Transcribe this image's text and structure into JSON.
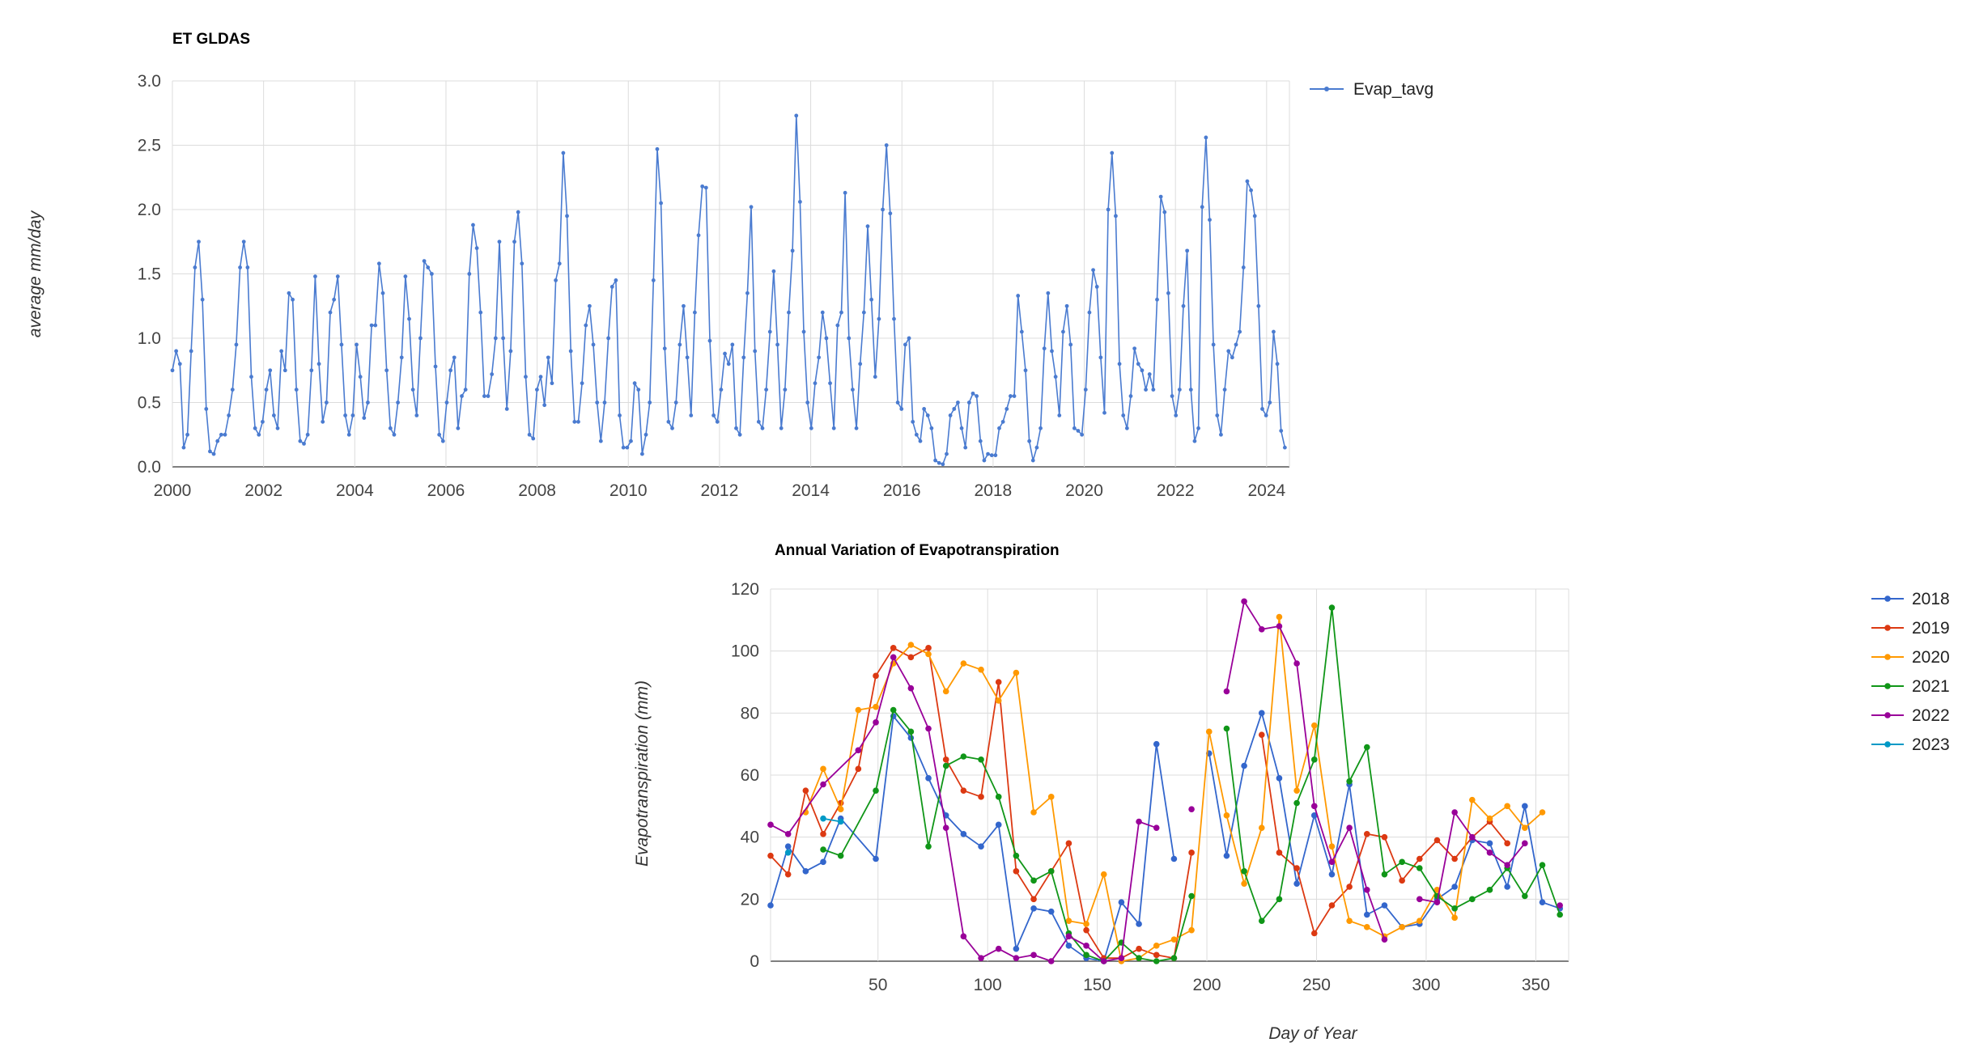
{
  "chart_data": [
    {
      "type": "line",
      "title": "ET GLDAS",
      "xlabel": "",
      "ylabel": "average mm/day",
      "xlim": [
        2000,
        2025
      ],
      "ylim": [
        0,
        3.0
      ],
      "x_ticks": [
        "2000",
        "2002",
        "2004",
        "2006",
        "2008",
        "2010",
        "2012",
        "2014",
        "2016",
        "2018",
        "2020",
        "2022",
        "2024"
      ],
      "y_ticks": [
        "0.0",
        "0.5",
        "1.0",
        "1.5",
        "2.0",
        "2.5",
        "3.0"
      ],
      "legend_position": "top-right",
      "grid": true,
      "series": [
        {
          "name": "Evap_tavg",
          "color": "#4a7bd0",
          "values": [
            0.75,
            0.9,
            0.8,
            0.15,
            0.25,
            0.9,
            1.55,
            1.75,
            1.3,
            0.45,
            0.12,
            0.1,
            0.2,
            0.25,
            0.25,
            0.4,
            0.6,
            0.95,
            1.55,
            1.75,
            1.55,
            0.7,
            0.3,
            0.25,
            0.35,
            0.6,
            0.75,
            0.4,
            0.3,
            0.9,
            0.75,
            1.35,
            1.3,
            0.6,
            0.2,
            0.18,
            0.25,
            0.75,
            1.48,
            0.8,
            0.35,
            0.5,
            1.2,
            1.3,
            1.48,
            0.95,
            0.4,
            0.25,
            0.4,
            0.95,
            0.7,
            0.38,
            0.5,
            1.1,
            1.1,
            1.58,
            1.35,
            0.75,
            0.3,
            0.25,
            0.5,
            0.85,
            1.48,
            1.15,
            0.6,
            0.4,
            1.0,
            1.6,
            1.55,
            1.5,
            0.78,
            0.25,
            0.2,
            0.5,
            0.75,
            0.85,
            0.3,
            0.55,
            0.6,
            1.5,
            1.88,
            1.7,
            1.2,
            0.55,
            0.55,
            0.72,
            1.0,
            1.75,
            1.0,
            0.45,
            0.9,
            1.75,
            1.98,
            1.58,
            0.7,
            0.25,
            0.22,
            0.6,
            0.7,
            0.48,
            0.85,
            0.65,
            1.45,
            1.58,
            2.44,
            1.95,
            0.9,
            0.35,
            0.35,
            0.65,
            1.1,
            1.25,
            0.95,
            0.5,
            0.2,
            0.5,
            1.0,
            1.4,
            1.45,
            0.4,
            0.15,
            0.15,
            0.2,
            0.65,
            0.6,
            0.1,
            0.25,
            0.5,
            1.45,
            2.47,
            2.05,
            0.92,
            0.35,
            0.3,
            0.5,
            0.95,
            1.25,
            0.85,
            0.4,
            1.2,
            1.8,
            2.18,
            2.17,
            0.98,
            0.4,
            0.35,
            0.6,
            0.88,
            0.8,
            0.95,
            0.3,
            0.25,
            0.85,
            1.35,
            2.02,
            0.9,
            0.35,
            0.3,
            0.6,
            1.05,
            1.52,
            0.95,
            0.3,
            0.6,
            1.2,
            1.68,
            2.73,
            2.06,
            1.05,
            0.5,
            0.3,
            0.65,
            0.85,
            1.2,
            1.0,
            0.65,
            0.3,
            1.1,
            1.2,
            2.13,
            1.0,
            0.6,
            0.3,
            0.8,
            1.2,
            1.87,
            1.3,
            0.7,
            1.15,
            2.0,
            2.5,
            1.97,
            1.15,
            0.5,
            0.45,
            0.95,
            1.0,
            0.35,
            0.25,
            0.2,
            0.45,
            0.4,
            0.3,
            0.05,
            0.03,
            0.02,
            0.1,
            0.4,
            0.45,
            0.5,
            0.3,
            0.15,
            0.5,
            0.57,
            0.55,
            0.2,
            0.05,
            0.1,
            0.09,
            0.09,
            0.3,
            0.35,
            0.45,
            0.55,
            0.55,
            1.33,
            1.05,
            0.75,
            0.2,
            0.05,
            0.15,
            0.3,
            0.92,
            1.35,
            0.9,
            0.7,
            0.4,
            1.05,
            1.25,
            0.95,
            0.3,
            0.28,
            0.25,
            0.6,
            1.2,
            1.53,
            1.4,
            0.85,
            0.42,
            2.0,
            2.44,
            1.95,
            0.8,
            0.4,
            0.3,
            0.55,
            0.92,
            0.8,
            0.75,
            0.6,
            0.72,
            0.6,
            1.3,
            2.1,
            1.98,
            1.35,
            0.55,
            0.4,
            0.6,
            1.25,
            1.68,
            0.6,
            0.2,
            0.3,
            2.02,
            2.56,
            1.92,
            0.95,
            0.4,
            0.25,
            0.6,
            0.9,
            0.85,
            0.95,
            1.05,
            1.55,
            2.22,
            2.15,
            1.95,
            1.25,
            0.45,
            0.4,
            0.5,
            1.05,
            0.8,
            0.28,
            0.15
          ]
        }
      ]
    },
    {
      "type": "line",
      "title": "Annual Variation of Evapotranspiration",
      "xlabel": "Day of Year",
      "ylabel": "Evapotranspiration (mm)",
      "xlim": [
        1,
        365
      ],
      "ylim": [
        0,
        120
      ],
      "x_ticks": [
        "50",
        "100",
        "150",
        "200",
        "250",
        "300",
        "350"
      ],
      "y_ticks": [
        "0",
        "20",
        "40",
        "60",
        "80",
        "100",
        "120"
      ],
      "legend_position": "right",
      "grid": true,
      "series": [
        {
          "name": "2018",
          "color": "#3366cc",
          "x": [
            1,
            9,
            17,
            25,
            33,
            49,
            57,
            65,
            73,
            81,
            89,
            97,
            105,
            113,
            121,
            129,
            137,
            145,
            153,
            161,
            169,
            177,
            185,
            193,
            201,
            209,
            217,
            225,
            233,
            241,
            249,
            257,
            265,
            273,
            281,
            289,
            297,
            305,
            313,
            321,
            329,
            337,
            345,
            353,
            361
          ],
          "values": [
            18,
            37,
            29,
            32,
            46,
            33,
            79,
            72,
            59,
            47,
            41,
            37,
            44,
            4,
            17,
            16,
            5,
            1,
            0,
            19,
            12,
            70,
            33,
            null,
            67,
            34,
            63,
            80,
            59,
            25,
            47,
            28,
            57,
            15,
            18,
            11,
            12,
            20,
            24,
            39,
            38,
            24,
            50,
            19,
            17
          ]
        },
        {
          "name": "2019",
          "color": "#dc3912",
          "x": [
            1,
            9,
            17,
            25,
            33,
            41,
            49,
            57,
            65,
            73,
            81,
            89,
            97,
            105,
            113,
            121,
            129,
            137,
            145,
            153,
            161,
            169,
            177,
            185,
            193,
            201,
            209,
            217,
            225,
            233,
            241,
            249,
            257,
            265,
            273,
            281,
            289,
            297,
            305,
            313,
            321,
            329,
            337
          ],
          "values": [
            34,
            28,
            55,
            41,
            51,
            62,
            92,
            101,
            98,
            101,
            65,
            55,
            53,
            90,
            29,
            20,
            29,
            38,
            10,
            1,
            1,
            4,
            2,
            1,
            35,
            null,
            null,
            null,
            73,
            35,
            30,
            9,
            18,
            24,
            41,
            40,
            26,
            33,
            39,
            33,
            40,
            45,
            38
          ]
        },
        {
          "name": "2020",
          "color": "#ff9900",
          "x": [
            17,
            25,
            33,
            41,
            49,
            57,
            65,
            73,
            81,
            89,
            97,
            105,
            113,
            121,
            129,
            137,
            145,
            153,
            161,
            169,
            177,
            185,
            193,
            201,
            209,
            217,
            225,
            233,
            241,
            249,
            257,
            265,
            273,
            281,
            289,
            297,
            305,
            313,
            321,
            329,
            337,
            345,
            353
          ],
          "values": [
            48,
            62,
            49,
            81,
            82,
            96,
            102,
            99,
            87,
            96,
            94,
            84,
            93,
            48,
            53,
            13,
            12,
            28,
            0,
            1,
            5,
            7,
            10,
            74,
            47,
            25,
            43,
            111,
            55,
            76,
            37,
            13,
            11,
            8,
            11,
            13,
            23,
            14,
            52,
            46,
            50,
            43,
            48
          ]
        },
        {
          "name": "2021",
          "color": "#109618",
          "x": [
            25,
            33,
            49,
            57,
            65,
            73,
            81,
            89,
            97,
            105,
            113,
            121,
            129,
            137,
            145,
            153,
            161,
            169,
            177,
            185,
            193,
            201,
            209,
            217,
            225,
            233,
            241,
            249,
            257,
            265,
            273,
            281,
            289,
            297,
            305,
            313,
            321,
            329,
            337,
            345,
            353,
            361
          ],
          "values": [
            36,
            34,
            55,
            81,
            74,
            37,
            63,
            66,
            65,
            53,
            34,
            26,
            29,
            9,
            2,
            0,
            6,
            1,
            0,
            1,
            21,
            null,
            75,
            29,
            13,
            20,
            51,
            65,
            114,
            58,
            69,
            28,
            32,
            30,
            21,
            17,
            20,
            23,
            30,
            21,
            31,
            15
          ]
        },
        {
          "name": "2022",
          "color": "#990099",
          "x": [
            1,
            9,
            25,
            41,
            49,
            57,
            65,
            73,
            81,
            89,
            97,
            105,
            113,
            121,
            129,
            137,
            145,
            153,
            161,
            169,
            177,
            185,
            193,
            201,
            209,
            217,
            225,
            233,
            241,
            249,
            257,
            265,
            273,
            281,
            289,
            297,
            305,
            313,
            321,
            329,
            337,
            345,
            353,
            361
          ],
          "values": [
            44,
            41,
            57,
            68,
            77,
            98,
            88,
            75,
            43,
            8,
            1,
            4,
            1,
            2,
            0,
            8,
            5,
            0,
            1,
            45,
            43,
            null,
            49,
            null,
            87,
            116,
            107,
            108,
            96,
            50,
            32,
            43,
            23,
            7,
            null,
            20,
            19,
            48,
            40,
            35,
            31,
            38,
            null,
            18
          ]
        },
        {
          "name": "2023",
          "color": "#0099c6",
          "x": [
            1,
            9,
            17,
            25,
            33
          ],
          "values": [
            null,
            35,
            null,
            46,
            45
          ]
        }
      ]
    }
  ]
}
